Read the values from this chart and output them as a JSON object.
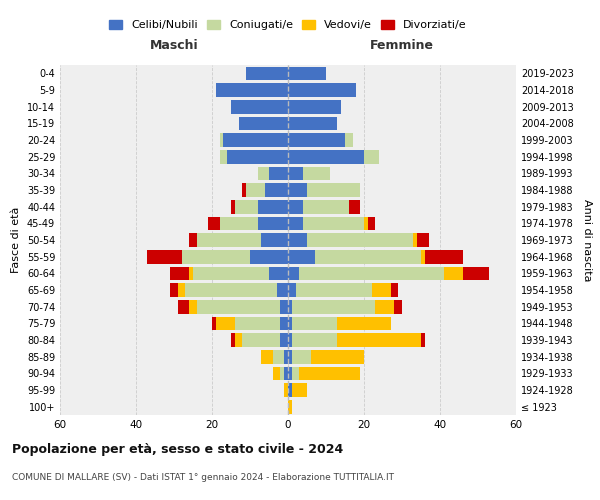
{
  "age_groups": [
    "100+",
    "95-99",
    "90-94",
    "85-89",
    "80-84",
    "75-79",
    "70-74",
    "65-69",
    "60-64",
    "55-59",
    "50-54",
    "45-49",
    "40-44",
    "35-39",
    "30-34",
    "25-29",
    "20-24",
    "15-19",
    "10-14",
    "5-9",
    "0-4"
  ],
  "birth_years": [
    "≤ 1923",
    "1924-1928",
    "1929-1933",
    "1934-1938",
    "1939-1943",
    "1944-1948",
    "1949-1953",
    "1954-1958",
    "1959-1963",
    "1964-1968",
    "1969-1973",
    "1974-1978",
    "1979-1983",
    "1984-1988",
    "1989-1993",
    "1994-1998",
    "1999-2003",
    "2004-2008",
    "2009-2013",
    "2014-2018",
    "2019-2023"
  ],
  "colors": {
    "celibi": "#4472c4",
    "coniugati": "#c5d9a0",
    "vedovi": "#ffc000",
    "divorziati": "#cc0000"
  },
  "maschi": {
    "celibi": [
      0,
      0,
      1,
      1,
      2,
      2,
      2,
      3,
      5,
      10,
      7,
      8,
      8,
      6,
      5,
      16,
      17,
      13,
      15,
      19,
      11
    ],
    "coniugati": [
      0,
      0,
      1,
      3,
      10,
      12,
      22,
      24,
      20,
      18,
      17,
      10,
      6,
      5,
      3,
      2,
      1,
      0,
      0,
      0,
      0
    ],
    "vedovi": [
      0,
      1,
      2,
      3,
      2,
      5,
      2,
      2,
      1,
      0,
      0,
      0,
      0,
      0,
      0,
      0,
      0,
      0,
      0,
      0,
      0
    ],
    "divorziati": [
      0,
      0,
      0,
      0,
      1,
      1,
      3,
      2,
      5,
      9,
      2,
      3,
      1,
      1,
      0,
      0,
      0,
      0,
      0,
      0,
      0
    ]
  },
  "femmine": {
    "celibi": [
      0,
      1,
      1,
      1,
      1,
      1,
      1,
      2,
      3,
      7,
      5,
      4,
      4,
      5,
      4,
      20,
      15,
      13,
      14,
      18,
      10
    ],
    "coniugati": [
      0,
      0,
      2,
      5,
      12,
      12,
      22,
      20,
      38,
      28,
      28,
      16,
      12,
      14,
      7,
      4,
      2,
      0,
      0,
      0,
      0
    ],
    "vedovi": [
      1,
      4,
      16,
      14,
      22,
      14,
      5,
      5,
      5,
      1,
      1,
      1,
      0,
      0,
      0,
      0,
      0,
      0,
      0,
      0,
      0
    ],
    "divorziati": [
      0,
      0,
      0,
      0,
      1,
      0,
      2,
      2,
      7,
      10,
      3,
      2,
      3,
      0,
      0,
      0,
      0,
      0,
      0,
      0,
      0
    ]
  },
  "title": "Popolazione per età, sesso e stato civile - 2024",
  "subtitle": "COMUNE DI MALLARE (SV) - Dati ISTAT 1° gennaio 2024 - Elaborazione TUTTITALIA.IT",
  "xlabel_left": "Maschi",
  "xlabel_right": "Femmine",
  "ylabel_left": "Fasce di età",
  "ylabel_right": "Anni di nascita",
  "xlim": 60,
  "legend_labels": [
    "Celibi/Nubili",
    "Coniugati/e",
    "Vedovi/e",
    "Divorziati/e"
  ],
  "bg_color": "#ffffff",
  "plot_bg": "#efefef"
}
